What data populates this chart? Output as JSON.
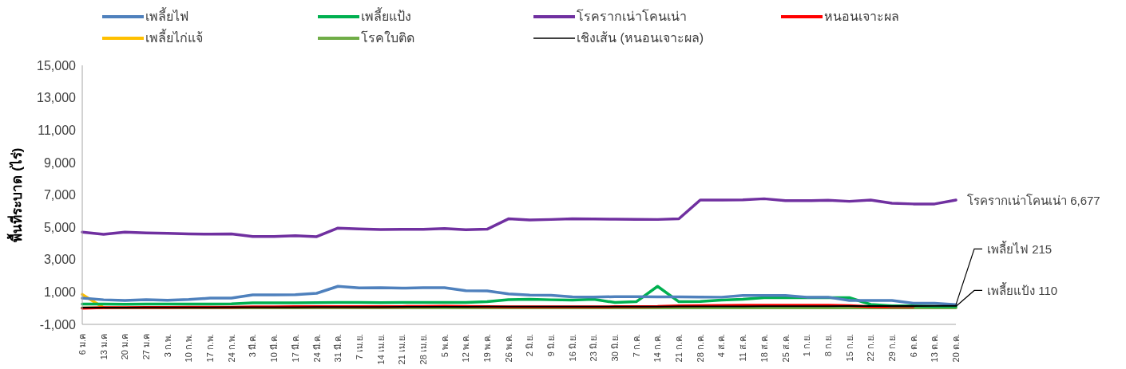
{
  "chart_data": {
    "type": "line",
    "ylabel": "พื้นที่ระบาด (ไร่)",
    "categories": [
      "6 ม.ค",
      "13 ม.ค",
      "20 ม.ค",
      "27 ม.ค",
      "3 ก.พ.",
      "10 ก.พ.",
      "17 ก.พ.",
      "24 ก.พ.",
      "3 มี.ค.",
      "10 มี.ค.",
      "17 มี.ค.",
      "24 มี.ค.",
      "31 มี.ค.",
      "7 เม.ย.",
      "14 เม.ย.",
      "21 เม.ย.",
      "28 เม.ย.",
      "5 พ.ค.",
      "12 พ.ค.",
      "19 พ.ค.",
      "26 พ.ค.",
      "2 มิ.ย.",
      "9 มิ.ย.",
      "16 มิ.ย.",
      "23 มิ.ย.",
      "30 มิ.ย.",
      "7 ก.ค.",
      "14 ก.ค.",
      "21 ก.ค.",
      "28 ก.ค.",
      "4 ส.ค.",
      "11 ส.ค.",
      "18 ส.ค.",
      "25 ส.ค.",
      "1 ก.ย.",
      "8 ก.ย.",
      "15 ก.ย.",
      "22 ก.ย.",
      "29 ก.ย.",
      "6 ต.ค.",
      "13 ต.ค.",
      "20 ต.ค."
    ],
    "series": [
      {
        "name": "เพลี้ยไฟ",
        "color": "#4f81bd",
        "values": [
          620,
          520,
          480,
          530,
          490,
          540,
          620,
          620,
          820,
          820,
          830,
          920,
          1350,
          1250,
          1260,
          1240,
          1260,
          1260,
          1080,
          1070,
          880,
          810,
          800,
          700,
          690,
          710,
          710,
          700,
          700,
          690,
          680,
          780,
          780,
          780,
          680,
          680,
          480,
          480,
          480,
          300,
          300,
          215
        ]
      },
      {
        "name": "เพลี้ยแป้ง",
        "color": "#00b050",
        "values": [
          250,
          250,
          240,
          250,
          250,
          250,
          260,
          270,
          330,
          330,
          330,
          340,
          350,
          350,
          340,
          350,
          350,
          350,
          350,
          400,
          530,
          550,
          520,
          500,
          550,
          350,
          400,
          1350,
          400,
          420,
          500,
          550,
          650,
          650,
          650,
          650,
          650,
          230,
          150,
          150,
          110,
          110
        ]
      },
      {
        "name": "โรครากเน่าโคนเน่า",
        "color": "#7030a0",
        "values": [
          4700,
          4560,
          4700,
          4650,
          4620,
          4590,
          4570,
          4590,
          4430,
          4430,
          4480,
          4420,
          4950,
          4900,
          4860,
          4870,
          4870,
          4920,
          4850,
          4880,
          5520,
          5450,
          5480,
          5520,
          5510,
          5500,
          5490,
          5480,
          5520,
          6680,
          6680,
          6690,
          6760,
          6640,
          6640,
          6670,
          6600,
          6680,
          6480,
          6440,
          6440,
          6677
        ]
      },
      {
        "name": "หนอนเจาะผล",
        "color": "#ff0000",
        "values": [
          0,
          30,
          40,
          50,
          50,
          60,
          60,
          60,
          80,
          80,
          90,
          90,
          100,
          100,
          100,
          100,
          110,
          120,
          110,
          100,
          80,
          80,
          80,
          80,
          80,
          90,
          100,
          110,
          150,
          160,
          170,
          180,
          180,
          180,
          180,
          180,
          160,
          100,
          80,
          80,
          null,
          null
        ]
      },
      {
        "name": "เพลี้ยไก่แจ้",
        "color": "#ffc000",
        "values": [
          850,
          30,
          null,
          null,
          null,
          null,
          null,
          null,
          null,
          null,
          null,
          null,
          null,
          null,
          null,
          null,
          null,
          null,
          null,
          null,
          null,
          null,
          null,
          null,
          null,
          null,
          null,
          null,
          null,
          null,
          null,
          null,
          null,
          null,
          null,
          null,
          null,
          null,
          null,
          null,
          null,
          null
        ]
      },
      {
        "name": "โรคใบติด",
        "color": "#70ad47",
        "values": [
          20,
          20,
          20,
          20,
          20,
          20,
          20,
          20,
          20,
          20,
          20,
          20,
          20,
          20,
          20,
          20,
          20,
          20,
          20,
          20,
          20,
          20,
          20,
          20,
          20,
          20,
          20,
          20,
          20,
          20,
          20,
          20,
          20,
          20,
          20,
          20,
          20,
          20,
          20,
          20,
          20,
          20
        ]
      },
      {
        "name": "เชิงเส้น (หนอนเจาะผล)",
        "color": "#000000",
        "line_style": "solid",
        "values": [
          40,
          40,
          40,
          50,
          50,
          50,
          50,
          60,
          60,
          60,
          60,
          70,
          70,
          70,
          70,
          80,
          80,
          80,
          80,
          90,
          90,
          90,
          90,
          100,
          100,
          100,
          100,
          100,
          110,
          110,
          110,
          110,
          120,
          120,
          120,
          120,
          130,
          130,
          130,
          130,
          140,
          140
        ]
      }
    ],
    "ylim": [
      -1000,
      15000
    ],
    "yticks": [
      {
        "value": -1000,
        "label": "-1,000"
      },
      {
        "value": 1000,
        "label": "1,000"
      },
      {
        "value": 3000,
        "label": "3,000"
      },
      {
        "value": 5000,
        "label": "5,000"
      },
      {
        "value": 7000,
        "label": "7,000"
      },
      {
        "value": 9000,
        "label": "9,000"
      },
      {
        "value": 11000,
        "label": "11,000"
      },
      {
        "value": 13000,
        "label": "13,000"
      },
      {
        "value": 15000,
        "label": "15,000"
      }
    ],
    "grid": false,
    "legend": "top",
    "marker": "none",
    "annotations": [
      {
        "text": "โรครากเน่าโคนเน่า 6,677",
        "x": "20 ต.ค.",
        "y": 6677
      },
      {
        "text": "เพลี้ยไฟ 215",
        "x": "20 ต.ค.",
        "y": 215
      },
      {
        "text": "เพลี้ยแป้ง 110",
        "x": "20 ต.ค.",
        "y": 110
      }
    ]
  }
}
